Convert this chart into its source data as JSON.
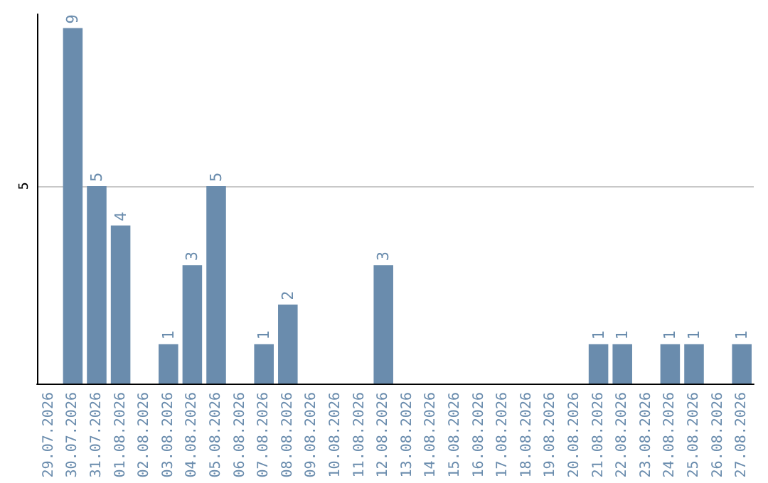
{
  "chart_data": {
    "type": "bar",
    "categories": [
      "29.07.2026",
      "30.07.2026",
      "31.07.2026",
      "01.08.2026",
      "02.08.2026",
      "03.08.2026",
      "04.08.2026",
      "05.08.2026",
      "06.08.2026",
      "07.08.2026",
      "08.08.2026",
      "09.08.2026",
      "10.08.2026",
      "11.08.2026",
      "12.08.2026",
      "13.08.2026",
      "14.08.2026",
      "15.08.2026",
      "16.08.2026",
      "17.08.2026",
      "18.08.2026",
      "19.08.2026",
      "20.08.2026",
      "21.08.2026",
      "22.08.2026",
      "23.08.2026",
      "24.08.2026",
      "25.08.2026",
      "26.08.2026",
      "27.08.2026"
    ],
    "values": [
      0,
      9,
      5,
      4,
      0,
      1,
      3,
      5,
      0,
      1,
      2,
      0,
      0,
      0,
      3,
      0,
      0,
      0,
      0,
      0,
      0,
      0,
      0,
      1,
      1,
      0,
      1,
      1,
      0,
      1
    ],
    "value_labels": [
      null,
      "9",
      "5",
      "4",
      null,
      "1",
      "3",
      "5",
      null,
      "1",
      "2",
      null,
      null,
      null,
      "3",
      null,
      null,
      null,
      null,
      null,
      null,
      null,
      null,
      "1",
      "1",
      null,
      "1",
      "1",
      null,
      "1"
    ],
    "color": "#6a8cad",
    "ylim": [
      0,
      9.35
    ],
    "yticks": [
      5
    ],
    "grid": "y"
  }
}
